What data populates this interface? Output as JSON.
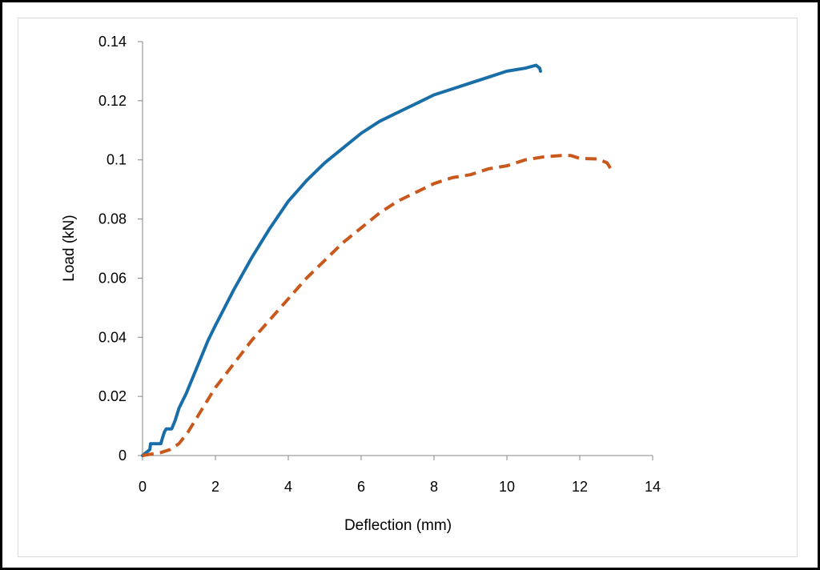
{
  "chart_data": {
    "type": "line",
    "title": "",
    "xlabel": "Deflection (mm)",
    "ylabel": "Load (kN)",
    "xlim": [
      0,
      14
    ],
    "ylim": [
      0,
      0.14
    ],
    "x_ticks": [
      "0",
      "2",
      "4",
      "6",
      "8",
      "10",
      "12",
      "14"
    ],
    "y_ticks": [
      "0",
      "0.02",
      "0.04",
      "0.06",
      "0.08",
      "0.1",
      "0.12",
      "0.14"
    ],
    "grid": false,
    "legend": "none",
    "series": [
      {
        "color": "#1a6ea8",
        "style": "solid",
        "points": [
          [
            0,
            0
          ],
          [
            0.1,
            0.001
          ],
          [
            0.2,
            0.002
          ],
          [
            0.22,
            0.004
          ],
          [
            0.5,
            0.004
          ],
          [
            0.55,
            0.006
          ],
          [
            0.6,
            0.008
          ],
          [
            0.65,
            0.009
          ],
          [
            0.8,
            0.009
          ],
          [
            0.9,
            0.012
          ],
          [
            1.0,
            0.016
          ],
          [
            1.2,
            0.021
          ],
          [
            1.4,
            0.027
          ],
          [
            1.6,
            0.033
          ],
          [
            1.8,
            0.039
          ],
          [
            2.0,
            0.044
          ],
          [
            2.25,
            0.05
          ],
          [
            2.5,
            0.056
          ],
          [
            3.0,
            0.067
          ],
          [
            3.5,
            0.077
          ],
          [
            4.0,
            0.086
          ],
          [
            4.5,
            0.093
          ],
          [
            5.0,
            0.099
          ],
          [
            5.5,
            0.104
          ],
          [
            6.0,
            0.109
          ],
          [
            6.5,
            0.113
          ],
          [
            7.0,
            0.116
          ],
          [
            7.5,
            0.119
          ],
          [
            8.0,
            0.122
          ],
          [
            8.5,
            0.124
          ],
          [
            9.0,
            0.126
          ],
          [
            9.5,
            0.128
          ],
          [
            10.0,
            0.13
          ],
          [
            10.5,
            0.131
          ],
          [
            10.8,
            0.132
          ],
          [
            10.9,
            0.131
          ],
          [
            10.92,
            0.13
          ]
        ]
      },
      {
        "color": "#c8581c",
        "style": "dashed",
        "points": [
          [
            0,
            0
          ],
          [
            0.25,
            0.0005
          ],
          [
            0.5,
            0.001
          ],
          [
            0.75,
            0.002
          ],
          [
            1.0,
            0.004
          ],
          [
            1.25,
            0.008
          ],
          [
            1.5,
            0.013
          ],
          [
            1.75,
            0.018
          ],
          [
            2.0,
            0.023
          ],
          [
            2.5,
            0.031
          ],
          [
            3.0,
            0.039
          ],
          [
            3.5,
            0.046
          ],
          [
            4.0,
            0.053
          ],
          [
            4.5,
            0.06
          ],
          [
            5.0,
            0.066
          ],
          [
            5.5,
            0.072
          ],
          [
            6.0,
            0.077
          ],
          [
            6.5,
            0.082
          ],
          [
            7.0,
            0.086
          ],
          [
            7.5,
            0.089
          ],
          [
            8.0,
            0.092
          ],
          [
            8.5,
            0.094
          ],
          [
            9.0,
            0.095
          ],
          [
            9.5,
            0.097
          ],
          [
            10.0,
            0.098
          ],
          [
            10.5,
            0.1
          ],
          [
            11.0,
            0.101
          ],
          [
            11.5,
            0.1015
          ],
          [
            11.75,
            0.1015
          ],
          [
            12.0,
            0.1005
          ],
          [
            12.5,
            0.1003
          ],
          [
            12.75,
            0.099
          ],
          [
            12.9,
            0.096
          ]
        ]
      }
    ]
  }
}
